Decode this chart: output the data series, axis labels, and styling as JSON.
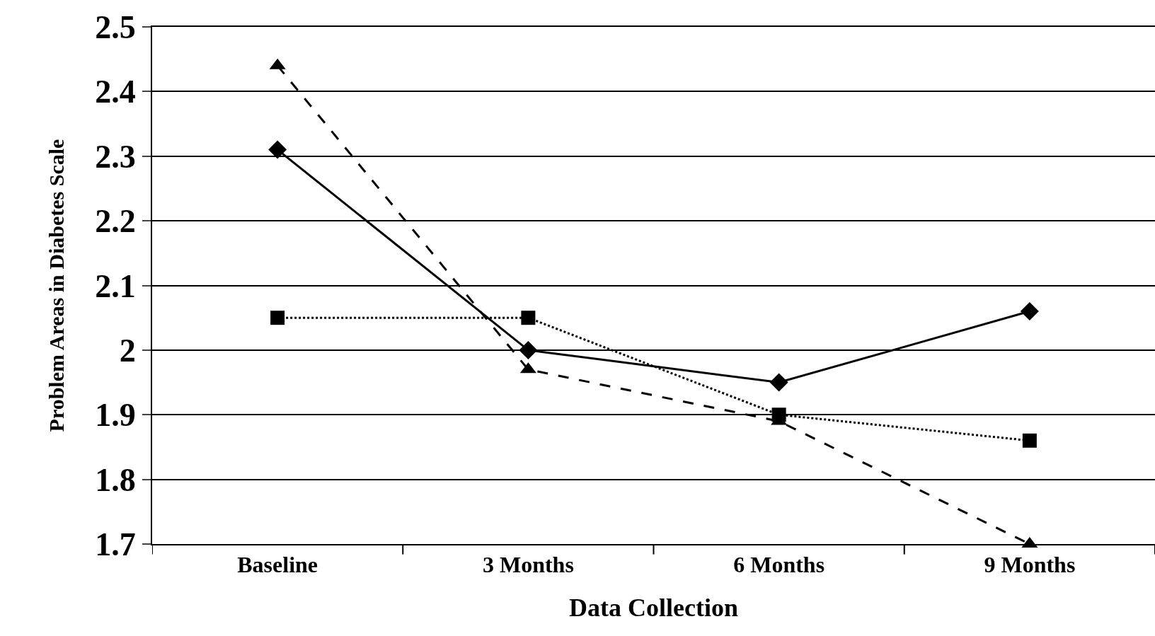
{
  "chart_data": {
    "type": "line",
    "xlabel": "Data Collection",
    "ylabel": "Problem Areas in Diabetes Scale",
    "categories": [
      "Baseline",
      "3 Months",
      "6 Months",
      "9 Months"
    ],
    "series": [
      {
        "color": "#000000",
        "values": [
          2.31,
          2.0,
          1.95,
          2.06
        ],
        "marker": "diamond",
        "line_style": "solid"
      },
      {
        "color": "#000000",
        "values": [
          2.05,
          2.05,
          1.9,
          1.86
        ],
        "marker": "square",
        "line_style": "dotted"
      },
      {
        "color": "#000000",
        "values": [
          2.44,
          1.97,
          1.89,
          1.7
        ],
        "marker": "triangle",
        "line_style": "dashed"
      }
    ],
    "ylim": [
      1.7,
      2.5
    ],
    "yticks": [
      1.7,
      1.8,
      1.9,
      {
        "value": 2.0,
        "label": "2"
      },
      2.1,
      2.2,
      2.3,
      2.4,
      2.5
    ],
    "grid": "y"
  }
}
